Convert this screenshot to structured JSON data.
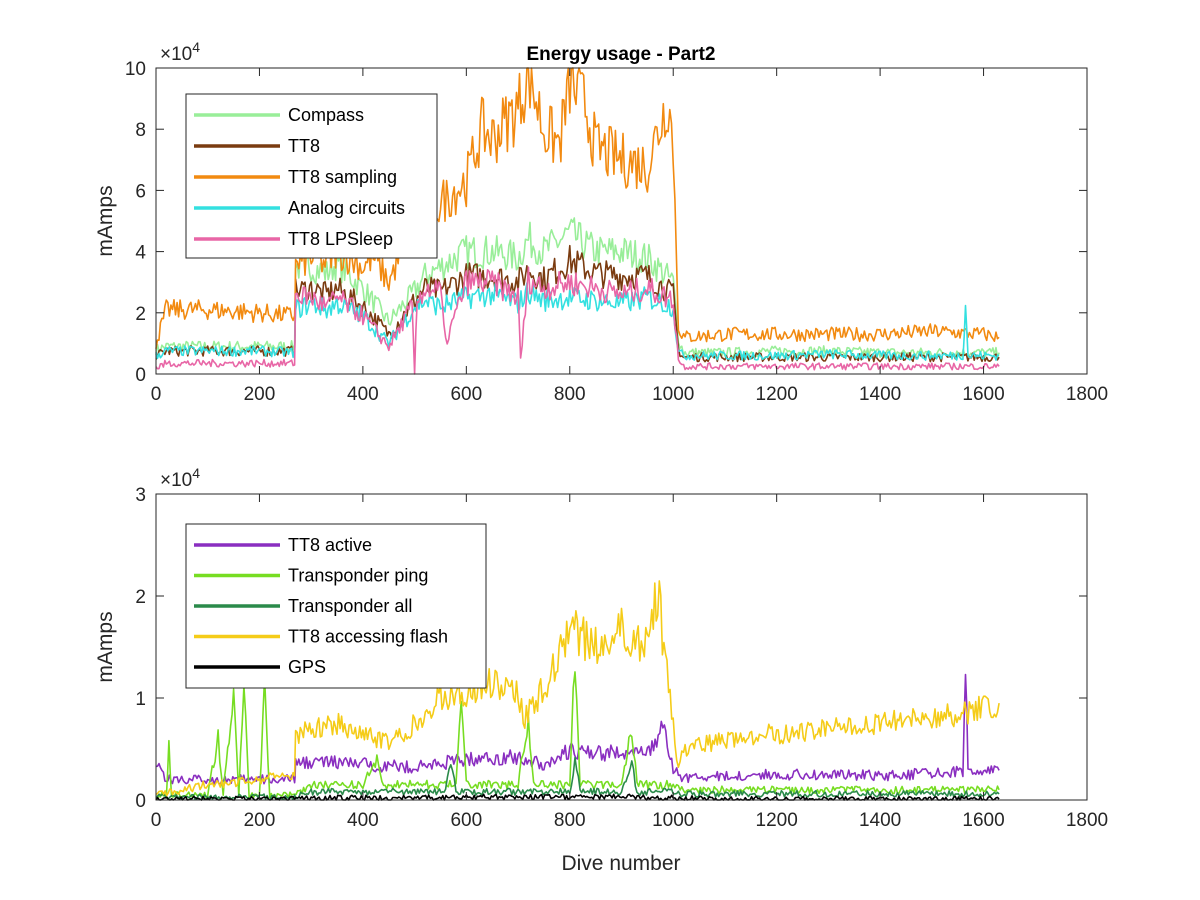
{
  "chart_data": [
    {
      "type": "line",
      "title": "Energy usage - Part2",
      "xlabel": "",
      "ylabel": "mAmps",
      "xlim": [
        0,
        1800
      ],
      "ylim": [
        0,
        100000
      ],
      "x_ticks": [
        "0",
        "200",
        "400",
        "600",
        "800",
        "1000",
        "1200",
        "1400",
        "1600",
        "1800"
      ],
      "y_ticks": [
        "0",
        "2",
        "4",
        "6",
        "8",
        "10"
      ],
      "y_exponent": {
        "base": "×10",
        "power": "4"
      },
      "grid": false,
      "legend_position": "top-left",
      "series": [
        {
          "name": "Compass",
          "color": "#99ee99",
          "x": [
            0,
            20,
            100,
            200,
            268,
            270,
            300,
            330,
            350,
            400,
            450,
            500,
            520,
            550,
            600,
            650,
            700,
            720,
            750,
            800,
            850,
            900,
            950,
            1000,
            1010,
            1020,
            1100,
            1200,
            1300,
            1400,
            1500,
            1600,
            1630
          ],
          "y": [
            8000,
            9000,
            9000,
            9000,
            9000,
            35000,
            35000,
            33000,
            36000,
            28000,
            17000,
            27000,
            32000,
            35000,
            40000,
            40000,
            38000,
            44000,
            40000,
            46000,
            40000,
            40000,
            38000,
            30000,
            12000,
            7000,
            7000,
            7500,
            7500,
            7000,
            7000,
            7000,
            7000
          ]
        },
        {
          "name": "TT8",
          "color": "#7a3b10",
          "x": [
            0,
            20,
            100,
            200,
            268,
            270,
            300,
            330,
            350,
            400,
            450,
            500,
            520,
            550,
            600,
            650,
            700,
            720,
            750,
            800,
            850,
            900,
            950,
            1000,
            1010,
            1020,
            1100,
            1200,
            1300,
            1400,
            1500,
            1600,
            1630
          ],
          "y": [
            6000,
            7500,
            7500,
            7500,
            7500,
            27000,
            28000,
            26000,
            28000,
            22000,
            13000,
            24000,
            28000,
            27000,
            32000,
            32000,
            30000,
            34000,
            31000,
            37000,
            33000,
            32000,
            32000,
            26000,
            8000,
            5500,
            5500,
            5500,
            5500,
            5500,
            5500,
            5500,
            5500
          ]
        },
        {
          "name": "TT8 sampling",
          "color": "#f28a10",
          "x": [
            0,
            20,
            100,
            200,
            268,
            270,
            300,
            330,
            350,
            400,
            420,
            450,
            480,
            500,
            520,
            550,
            600,
            630,
            650,
            700,
            720,
            750,
            780,
            800,
            830,
            850,
            900,
            950,
            990,
            1000,
            1010,
            1020,
            1100,
            1200,
            1300,
            1400,
            1500,
            1600,
            1630
          ],
          "y": [
            10000,
            21000,
            21000,
            20000,
            19000,
            35000,
            38000,
            36000,
            40000,
            35000,
            38000,
            30000,
            42000,
            44000,
            50000,
            56000,
            63000,
            80000,
            77000,
            87000,
            99000,
            80000,
            75000,
            95000,
            88000,
            74000,
            70000,
            68000,
            90000,
            75000,
            16000,
            12000,
            13000,
            13000,
            13000,
            13000,
            14000,
            13000,
            12000
          ]
        },
        {
          "name": "Analog circuits",
          "color": "#33e0e0",
          "x": [
            0,
            20,
            100,
            200,
            268,
            270,
            300,
            330,
            350,
            400,
            450,
            500,
            520,
            550,
            600,
            650,
            700,
            720,
            750,
            800,
            850,
            900,
            950,
            1000,
            1010,
            1020,
            1100,
            1200,
            1300,
            1400,
            1500,
            1560,
            1565,
            1570,
            1600,
            1630
          ],
          "y": [
            6000,
            7500,
            7500,
            7500,
            7000,
            21000,
            23000,
            21000,
            23000,
            19000,
            10000,
            22000,
            24000,
            22000,
            25000,
            26000,
            23000,
            27000,
            24000,
            25000,
            24000,
            23000,
            25000,
            22000,
            7000,
            6000,
            6000,
            6000,
            6500,
            6000,
            6000,
            6000,
            24000,
            6000,
            6000,
            6000
          ]
        },
        {
          "name": "TT8 LPSleep",
          "color": "#e866a6",
          "x": [
            0,
            20,
            100,
            200,
            268,
            270,
            300,
            330,
            350,
            400,
            450,
            495,
            500,
            505,
            520,
            550,
            560,
            600,
            650,
            700,
            705,
            720,
            750,
            800,
            850,
            900,
            950,
            1000,
            1010,
            1020,
            1100,
            1200,
            1300,
            1400,
            1500,
            1600,
            1630
          ],
          "y": [
            2000,
            3500,
            3500,
            3500,
            3500,
            26000,
            25000,
            22000,
            25000,
            19000,
            9000,
            22000,
            0,
            24000,
            28000,
            27000,
            10000,
            30000,
            30000,
            25000,
            5000,
            31000,
            28000,
            30000,
            28000,
            26000,
            28000,
            24000,
            5000,
            2500,
            2500,
            2500,
            2500,
            2500,
            2500,
            2500,
            2500
          ]
        }
      ]
    },
    {
      "type": "line",
      "title": "",
      "xlabel": "Dive number",
      "ylabel": "mAmps",
      "xlim": [
        0,
        1800
      ],
      "ylim": [
        0,
        30000
      ],
      "x_ticks": [
        "0",
        "200",
        "400",
        "600",
        "800",
        "1000",
        "1200",
        "1400",
        "1600",
        "1800"
      ],
      "y_ticks": [
        "0",
        "1",
        "2",
        "3"
      ],
      "y_exponent": {
        "base": "×10",
        "power": "4"
      },
      "grid": false,
      "legend_position": "top-left",
      "series": [
        {
          "name": "TT8 active",
          "color": "#8a2ec0",
          "x": [
            0,
            20,
            100,
            200,
            268,
            270,
            300,
            400,
            500,
            600,
            700,
            750,
            800,
            850,
            900,
            950,
            980,
            1000,
            1010,
            1020,
            1100,
            1200,
            1300,
            1400,
            1500,
            1560,
            1565,
            1570,
            1600,
            1630
          ],
          "y": [
            4000,
            2000,
            2000,
            2000,
            2000,
            3500,
            3800,
            3500,
            3200,
            4000,
            4200,
            3500,
            4800,
            4500,
            4700,
            4500,
            7000,
            3000,
            2500,
            2200,
            2300,
            2500,
            2500,
            2400,
            2600,
            2800,
            14000,
            3000,
            2800,
            2900
          ]
        },
        {
          "name": "Transponder ping",
          "color": "#77dd22",
          "x": [
            0,
            20,
            25,
            30,
            100,
            120,
            130,
            150,
            160,
            170,
            180,
            200,
            210,
            220,
            268,
            300,
            400,
            430,
            440,
            500,
            580,
            590,
            600,
            700,
            720,
            730,
            800,
            810,
            820,
            900,
            920,
            930,
            1000,
            1010,
            1020,
            1100,
            1200,
            1300,
            1400,
            1500,
            1600,
            1630
          ],
          "y": [
            500,
            500,
            6000,
            500,
            500,
            6000,
            500,
            11000,
            500,
            11000,
            500,
            500,
            11000,
            500,
            500,
            1500,
            1500,
            4000,
            1500,
            1500,
            1500,
            10000,
            1500,
            1500,
            8000,
            1500,
            1500,
            14000,
            1500,
            1500,
            7000,
            1500,
            1500,
            1200,
            1000,
            1000,
            1000,
            1000,
            1000,
            1000,
            1000,
            1000
          ]
        },
        {
          "name": "Transponder all",
          "color": "#2a8a4a",
          "x": [
            0,
            100,
            200,
            268,
            300,
            400,
            500,
            560,
            570,
            580,
            600,
            700,
            800,
            810,
            820,
            900,
            920,
            930,
            1000,
            1010,
            1100,
            1200,
            1300,
            1400,
            1500,
            1600,
            1630
          ],
          "y": [
            300,
            300,
            300,
            300,
            800,
            800,
            800,
            800,
            4000,
            800,
            800,
            800,
            800,
            4000,
            800,
            800,
            3500,
            800,
            800,
            600,
            600,
            600,
            600,
            600,
            600,
            600,
            600
          ]
        },
        {
          "name": "TT8 accessing flash",
          "color": "#f5cc18",
          "x": [
            0,
            50,
            100,
            200,
            268,
            270,
            300,
            350,
            400,
            450,
            500,
            550,
            600,
            650,
            700,
            710,
            750,
            800,
            850,
            900,
            950,
            970,
            1000,
            1010,
            1020,
            1100,
            1200,
            1300,
            1400,
            1500,
            1600,
            1630
          ],
          "y": [
            500,
            1000,
            1500,
            2000,
            2500,
            6500,
            7000,
            7500,
            6500,
            5500,
            7500,
            10000,
            10500,
            11500,
            11000,
            8000,
            11000,
            17000,
            15000,
            17000,
            15000,
            20500,
            7000,
            3000,
            5000,
            6000,
            6500,
            7000,
            7500,
            8000,
            9000,
            9500
          ]
        },
        {
          "name": "GPS",
          "color": "#000000",
          "x": [
            0,
            100,
            200,
            268,
            300,
            400,
            500,
            600,
            700,
            800,
            900,
            1000,
            1100,
            1200,
            1300,
            1400,
            1500,
            1600,
            1630
          ],
          "y": [
            100,
            100,
            100,
            100,
            200,
            200,
            200,
            300,
            300,
            300,
            300,
            200,
            100,
            100,
            100,
            100,
            100,
            100,
            100
          ]
        }
      ]
    }
  ]
}
